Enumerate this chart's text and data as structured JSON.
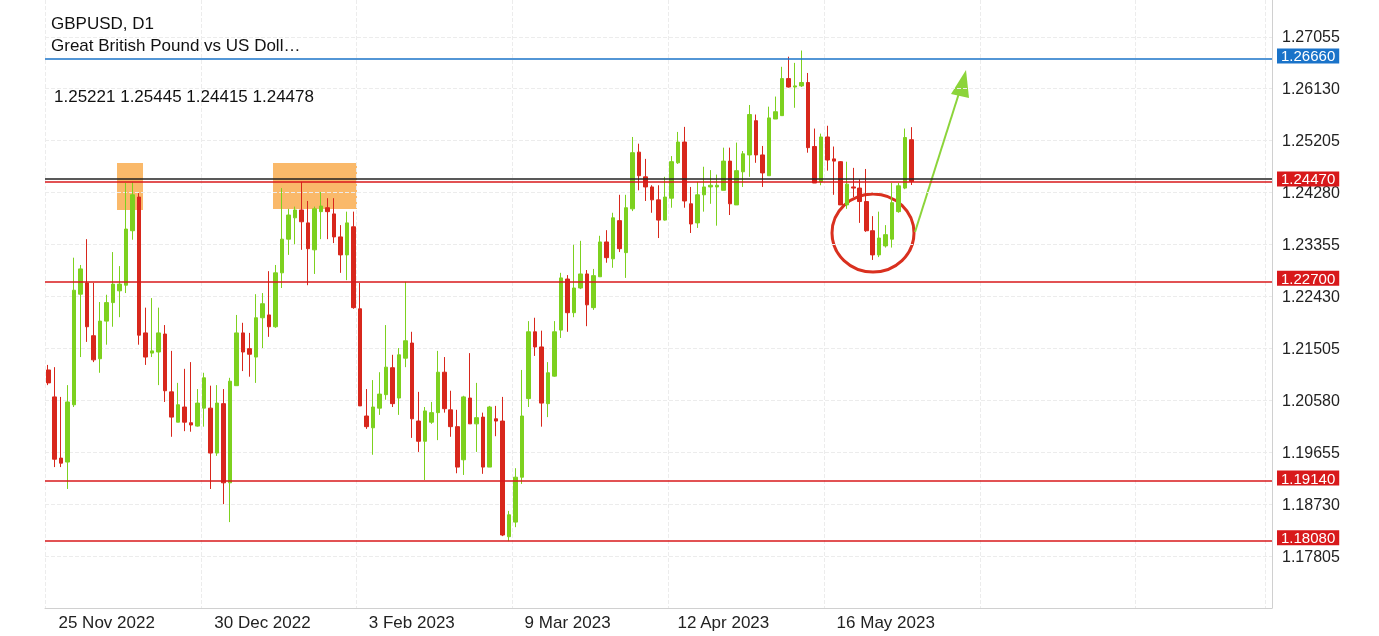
{
  "chart_data": {
    "type": "candlestick",
    "title": "GBPUSD, D1",
    "subtitle": "Great British Pound vs US Doll…",
    "annotations": [
      "1.25221 1.25445 1.24415 1.24478"
    ],
    "categories": [
      null,
      null,
      null,
      null,
      null,
      null,
      null,
      null,
      null,
      "25 Nov 2022",
      null,
      null,
      null,
      null,
      null,
      null,
      null,
      null,
      null,
      null,
      null,
      null,
      null,
      null,
      null,
      null,
      null,
      null,
      null,
      null,
      null,
      null,
      null,
      "30 Dec 2022",
      null,
      null,
      null,
      null,
      null,
      null,
      null,
      null,
      null,
      null,
      null,
      null,
      null,
      null,
      null,
      null,
      null,
      null,
      null,
      null,
      null,
      null,
      "3 Feb 2023",
      null,
      null,
      null,
      null,
      null,
      null,
      null,
      null,
      null,
      null,
      null,
      null,
      null,
      null,
      null,
      null,
      null,
      null,
      null,
      null,
      null,
      null,
      null,
      "9 Mar 2023",
      null,
      null,
      null,
      null,
      null,
      null,
      null,
      null,
      null,
      null,
      null,
      null,
      null,
      null,
      null,
      null,
      null,
      null,
      null,
      null,
      null,
      null,
      null,
      "12 Apr 2023",
      null,
      null,
      null,
      null,
      null,
      null,
      null,
      null,
      null,
      null,
      null,
      null,
      null,
      null,
      null,
      null,
      null,
      null,
      null,
      null,
      null,
      null,
      null,
      null,
      "16 May 2023",
      null,
      null,
      null,
      null,
      null,
      null,
      null,
      null,
      null,
      null,
      null,
      null,
      null,
      null,
      null,
      null,
      null,
      null,
      null,
      null,
      null,
      null,
      null,
      null,
      null,
      null,
      null,
      null,
      null,
      null,
      null,
      null,
      null,
      null,
      null,
      null,
      null,
      null,
      null,
      null,
      null,
      null,
      null,
      null,
      null,
      null,
      null,
      null,
      null,
      null,
      null,
      null,
      null,
      null,
      null,
      null,
      null,
      null,
      null
    ],
    "ohlc": [
      [
        1.2112,
        1.2121,
        1.2085,
        1.2089
      ],
      [
        1.2064,
        1.2117,
        1.1939,
        1.1953
      ],
      [
        1.1955,
        1.2064,
        1.1939,
        1.1946
      ],
      [
        1.1948,
        1.2085,
        1.19,
        1.2055
      ],
      [
        1.205,
        1.2312,
        1.2046,
        1.2254
      ],
      [
        1.2247,
        1.2299,
        1.2135,
        1.2292
      ],
      [
        1.2267,
        1.2345,
        1.2162,
        1.2189
      ],
      [
        1.2173,
        1.2267,
        1.2126,
        1.213
      ],
      [
        1.2132,
        1.2233,
        1.2107,
        1.2199
      ],
      [
        1.2199,
        1.2246,
        1.2157,
        1.2232
      ],
      [
        1.2232,
        1.2322,
        1.2189,
        1.2265
      ],
      [
        1.2253,
        1.2297,
        1.2206,
        1.2265
      ],
      [
        1.2263,
        1.2445,
        1.2249,
        1.2363
      ],
      [
        1.236,
        1.2447,
        1.2344,
        1.2424
      ],
      [
        1.242,
        1.2427,
        1.2157,
        1.2174
      ],
      [
        1.2178,
        1.2223,
        1.2121,
        1.2135
      ],
      [
        1.2142,
        1.224,
        1.2135,
        1.2146
      ],
      [
        1.2144,
        1.2223,
        1.2085,
        1.2178
      ],
      [
        1.2176,
        1.2192,
        1.2055,
        1.2075
      ],
      [
        1.2073,
        1.2146,
        1.1993,
        1.2028
      ],
      [
        1.2019,
        1.2089,
        1.2019,
        1.205
      ],
      [
        1.2046,
        1.2114,
        1.2003,
        1.2019
      ],
      [
        1.2018,
        1.2126,
        1.2002,
        1.2014
      ],
      [
        1.2012,
        1.2078,
        1.2011,
        1.2053
      ],
      [
        1.2044,
        1.2107,
        1.2011,
        1.2098
      ],
      [
        1.2044,
        1.2084,
        1.19,
        1.1964
      ],
      [
        1.1964,
        1.2085,
        1.1959,
        1.2053
      ],
      [
        1.2052,
        1.2078,
        1.1873,
        1.1911
      ],
      [
        1.1911,
        1.2098,
        1.1841,
        1.2092
      ],
      [
        1.2084,
        1.221,
        1.2084,
        1.2178
      ],
      [
        1.2178,
        1.2196,
        1.211,
        1.2144
      ],
      [
        1.215,
        1.2178,
        1.21,
        1.214
      ],
      [
        1.2135,
        1.2247,
        1.2089,
        1.2205
      ],
      [
        1.2205,
        1.2249,
        1.2151,
        1.223
      ],
      [
        1.221,
        1.2288,
        1.2171,
        1.2189
      ],
      [
        1.2189,
        1.2299,
        1.2187,
        1.2285
      ],
      [
        1.2285,
        1.2436,
        1.2258,
        1.2345
      ],
      [
        1.2345,
        1.2399,
        1.2317,
        1.2388
      ],
      [
        1.2383,
        1.2403,
        1.2336,
        1.2397
      ],
      [
        1.2397,
        1.2447,
        1.2326,
        1.2376
      ],
      [
        1.2374,
        1.2413,
        1.2263,
        1.2328
      ],
      [
        1.2326,
        1.2403,
        1.2283,
        1.2399
      ],
      [
        1.2394,
        1.2429,
        1.2345,
        1.2404
      ],
      [
        1.2401,
        1.2418,
        1.2345,
        1.2394
      ],
      [
        1.239,
        1.2418,
        1.2338,
        1.2349
      ],
      [
        1.2349,
        1.237,
        1.2285,
        1.2317
      ],
      [
        1.2317,
        1.2394,
        1.2272,
        1.2374
      ],
      [
        1.2367,
        1.2394,
        1.2221,
        1.2223
      ],
      [
        1.2221,
        1.2267,
        1.2048,
        1.2048
      ],
      [
        1.203,
        1.2078,
        1.2007,
        1.2011
      ],
      [
        1.2009,
        1.2094,
        1.1961,
        1.2046
      ],
      [
        1.2044,
        1.2108,
        1.2032,
        1.2069
      ],
      [
        1.2068,
        1.2192,
        1.2059,
        1.2117
      ],
      [
        1.2116,
        1.2139,
        1.2046,
        1.2052
      ],
      [
        1.2062,
        1.2151,
        1.2032,
        1.2139
      ],
      [
        1.2133,
        1.2269,
        1.2117,
        1.2164
      ],
      [
        1.216,
        1.218,
        1.1991,
        1.2025
      ],
      [
        1.2021,
        1.2073,
        1.1966,
        1.1985
      ],
      [
        1.1985,
        1.2046,
        1.1916,
        1.2039
      ],
      [
        1.2019,
        1.2055,
        1.2016,
        1.2036
      ],
      [
        1.2036,
        1.2146,
        1.1987,
        1.2108
      ],
      [
        1.2108,
        1.2135,
        1.2036,
        1.2043
      ],
      [
        1.2041,
        1.2075,
        1.1993,
        1.2011
      ],
      [
        1.2011,
        1.2041,
        1.1928,
        1.1939
      ],
      [
        1.1952,
        1.2066,
        1.1925,
        1.2064
      ],
      [
        1.2062,
        1.2142,
        1.2016,
        1.2016
      ],
      [
        1.2016,
        1.2089,
        1.1966,
        1.2027
      ],
      [
        1.2028,
        1.2036,
        1.1927,
        1.1939
      ],
      [
        1.1939,
        1.2048,
        1.1939,
        1.2046
      ],
      [
        1.2025,
        1.2048,
        1.1994,
        1.2021
      ],
      [
        1.2021,
        1.2064,
        1.1816,
        1.1818
      ],
      [
        1.1815,
        1.1861,
        1.1807,
        1.1854
      ],
      [
        1.1841,
        1.1937,
        1.1832,
        1.1921
      ],
      [
        1.1921,
        1.2112,
        1.1909,
        1.203
      ],
      [
        1.2061,
        1.2199,
        1.2046,
        1.218
      ],
      [
        1.218,
        1.2205,
        1.2137,
        1.2153
      ],
      [
        1.2153,
        1.2182,
        1.2011,
        1.2053
      ],
      [
        1.2052,
        1.2126,
        1.2028,
        1.2107
      ],
      [
        1.2101,
        1.2199,
        1.21,
        1.218
      ],
      [
        1.2183,
        1.2285,
        1.2169,
        1.2276
      ],
      [
        1.2274,
        1.2281,
        1.218,
        1.2214
      ],
      [
        1.2214,
        1.2335,
        1.2206,
        1.2258
      ],
      [
        1.2258,
        1.2342,
        1.2256,
        1.2283
      ],
      [
        1.2283,
        1.229,
        1.219,
        1.2228
      ],
      [
        1.2223,
        1.2292,
        1.2219,
        1.228
      ],
      [
        1.2278,
        1.2351,
        1.2278,
        1.234
      ],
      [
        1.234,
        1.2361,
        1.2303,
        1.2312
      ],
      [
        1.231,
        1.2392,
        1.2294,
        1.2383
      ],
      [
        1.2378,
        1.2424,
        1.2322,
        1.2328
      ],
      [
        1.2321,
        1.2424,
        1.2276,
        1.2401
      ],
      [
        1.2399,
        1.2527,
        1.2395,
        1.2499
      ],
      [
        1.25,
        1.2515,
        1.2432,
        1.2458
      ],
      [
        1.2456,
        1.2488,
        1.2413,
        1.2438
      ],
      [
        1.2438,
        1.2441,
        1.2392,
        1.2415
      ],
      [
        1.2415,
        1.2441,
        1.2347,
        1.2379
      ],
      [
        1.2379,
        1.2456,
        1.2378,
        1.242
      ],
      [
        1.2418,
        1.2493,
        1.2401,
        1.2483
      ],
      [
        1.2481,
        1.2536,
        1.2479,
        1.2518
      ],
      [
        1.2518,
        1.2545,
        1.2401,
        1.2413
      ],
      [
        1.2408,
        1.2438,
        1.2356,
        1.2372
      ],
      [
        1.2374,
        1.2447,
        1.2365,
        1.2424
      ],
      [
        1.2424,
        1.2474,
        1.2394,
        1.2438
      ],
      [
        1.2438,
        1.2468,
        1.2408,
        1.2441
      ],
      [
        1.2438,
        1.246,
        1.2369,
        1.2441
      ],
      [
        1.2432,
        1.2508,
        1.2432,
        1.2484
      ],
      [
        1.2484,
        1.2508,
        1.2388,
        1.2408
      ],
      [
        1.2406,
        1.2517,
        1.2406,
        1.2467
      ],
      [
        1.2465,
        1.2502,
        1.2438,
        1.2497
      ],
      [
        1.2495,
        1.2584,
        1.2456,
        1.2567
      ],
      [
        1.2556,
        1.2567,
        1.2481,
        1.2495
      ],
      [
        1.2495,
        1.2511,
        1.2438,
        1.2463
      ],
      [
        1.2458,
        1.2581,
        1.2458,
        1.2561
      ],
      [
        1.2559,
        1.2599,
        1.2559,
        1.2572
      ],
      [
        1.2565,
        1.2652,
        1.2565,
        1.2631
      ],
      [
        1.2631,
        1.267,
        1.2615,
        1.2616
      ],
      [
        1.2616,
        1.2659,
        1.2579,
        1.2618
      ],
      [
        1.2618,
        1.2681,
        1.2616,
        1.2624
      ],
      [
        1.2624,
        1.2641,
        1.2499,
        1.2508
      ],
      [
        1.251,
        1.2542,
        1.2445,
        1.2445
      ],
      [
        1.2447,
        1.2533,
        1.2441,
        1.2527
      ],
      [
        1.2527,
        1.2547,
        1.2467,
        1.2486
      ],
      [
        1.2488,
        1.251,
        1.2424,
        1.2484
      ],
      [
        1.2483,
        1.2484,
        1.2406,
        1.2406
      ],
      [
        1.2406,
        1.2483,
        1.2399,
        1.2443
      ],
      [
        1.2438,
        1.2472,
        1.242,
        1.2436
      ],
      [
        1.2436,
        1.2452,
        1.2374,
        1.2412
      ],
      [
        1.2412,
        1.247,
        1.2358,
        1.236
      ],
      [
        1.236,
        1.2386,
        1.2308,
        1.2317
      ],
      [
        1.2317,
        1.2394,
        1.2313,
        1.2347
      ],
      [
        1.2333,
        1.237,
        1.233,
        1.2353
      ],
      [
        1.2345,
        1.2445,
        1.233,
        1.241
      ],
      [
        1.2394,
        1.2445,
        1.2392,
        1.244
      ],
      [
        1.2436,
        1.2542,
        1.2434,
        1.2526
      ],
      [
        1.25221,
        1.25445,
        1.24415,
        1.24478
      ],
      null,
      null,
      null,
      null,
      null,
      null,
      null,
      null,
      null,
      null,
      null,
      null,
      null,
      null,
      null,
      null,
      null,
      null,
      null,
      null,
      null,
      null,
      null,
      null,
      null,
      null,
      null,
      null,
      null,
      null,
      null,
      null,
      null,
      null,
      null,
      null,
      null,
      null,
      null,
      null,
      null,
      null,
      null,
      null,
      null,
      null,
      null,
      null,
      null,
      null,
      null,
      null,
      null,
      null,
      null
    ],
    "colors": [
      "#d8271c",
      "#d8271c",
      "#d8271c",
      "#7dd11f",
      "#7dd11f",
      "#7dd11f",
      "#d8271c",
      "#d8271c",
      "#7dd11f",
      "#7dd11f",
      "#7dd11f",
      "#7dd11f",
      "#7dd11f",
      "#7dd11f",
      "#d8271c",
      "#d8271c",
      "#7dd11f",
      "#7dd11f",
      "#d8271c",
      "#d8271c",
      "#7dd11f",
      "#d8271c",
      "#d8271c",
      "#7dd11f",
      "#7dd11f",
      "#d8271c",
      "#7dd11f",
      "#d8271c",
      "#7dd11f",
      "#7dd11f",
      "#d8271c",
      "#d8271c",
      "#7dd11f",
      "#7dd11f",
      "#d8271c",
      "#7dd11f",
      "#7dd11f",
      "#7dd11f",
      "#7dd11f",
      "#d8271c",
      "#d8271c",
      "#7dd11f",
      "#7dd11f",
      "#d8271c",
      "#d8271c",
      "#d8271c",
      "#7dd11f",
      "#d8271c",
      "#d8271c",
      "#d8271c",
      "#7dd11f",
      "#7dd11f",
      "#7dd11f",
      "#d8271c",
      "#7dd11f",
      "#7dd11f",
      "#d8271c",
      "#d8271c",
      "#7dd11f",
      "#7dd11f",
      "#7dd11f",
      "#d8271c",
      "#d8271c",
      "#d8271c",
      "#7dd11f",
      "#d8271c",
      "#7dd11f",
      "#d8271c",
      "#7dd11f",
      "#d8271c",
      "#d8271c",
      "#7dd11f",
      "#7dd11f",
      "#7dd11f",
      "#7dd11f",
      "#d8271c",
      "#d8271c",
      "#7dd11f",
      "#7dd11f",
      "#7dd11f",
      "#d8271c",
      "#7dd11f",
      "#7dd11f",
      "#d8271c",
      "#7dd11f",
      "#7dd11f",
      "#d8271c",
      "#7dd11f",
      "#d8271c",
      "#7dd11f",
      "#7dd11f",
      "#d8271c",
      "#d8271c",
      "#d8271c",
      "#d8271c",
      "#7dd11f",
      "#7dd11f",
      "#7dd11f",
      "#d8271c",
      "#d8271c",
      "#7dd11f",
      "#7dd11f",
      "#7dd11f",
      "#7dd11f",
      "#7dd11f",
      "#d8271c",
      "#7dd11f",
      "#7dd11f",
      "#7dd11f",
      "#d8271c",
      "#d8271c",
      "#7dd11f",
      "#7dd11f",
      "#7dd11f",
      "#d8271c",
      "#7dd11f",
      "#7dd11f",
      "#d8271c",
      "#d8271c",
      "#7dd11f",
      "#d8271c",
      "#d8271c",
      "#d8271c",
      "#7dd11f",
      "#d8271c",
      "#d8271c",
      "#d8271c",
      "#d8271c",
      "#7dd11f",
      "#7dd11f",
      "#7dd11f",
      "#7dd11f",
      "#7dd11f",
      "#d8271c",
      null,
      null,
      null,
      null,
      null,
      null,
      null,
      null,
      null,
      null,
      null,
      null,
      null,
      null,
      null,
      null,
      null,
      null,
      null,
      null,
      null,
      null,
      null,
      null,
      null,
      null,
      null,
      null,
      null,
      null,
      null,
      null,
      null,
      null,
      null,
      null,
      null,
      null,
      null,
      null,
      null,
      null,
      null,
      null,
      null,
      null,
      null,
      null,
      null,
      null,
      null,
      null,
      null,
      null,
      null
    ],
    "ylim": [
      1.1688,
      1.2771
    ],
    "yticks": [
      1.27055,
      {
        "value": 1.2613,
        "label": "1.26130"
      },
      1.25205,
      {
        "value": 1.2428,
        "label": "1.24280"
      },
      1.23355,
      {
        "value": 1.2243,
        "label": "1.22430"
      },
      1.21505,
      {
        "value": 1.2058,
        "label": "1.20580"
      },
      1.19655,
      {
        "value": 1.1873,
        "label": "1.18730"
      },
      1.17805
    ],
    "grid": true,
    "ref_lines": [
      {
        "axis": "y",
        "value": 1.2666,
        "label": "1.26660",
        "color": "#1a73c9"
      },
      {
        "axis": "y",
        "value": 1.2452,
        "label": null,
        "color": "#222222"
      },
      {
        "axis": "y",
        "value": 1.2447,
        "label": "1.24470",
        "color": "#d8191b"
      },
      {
        "axis": "y",
        "value": 1.227,
        "label": "1.22700",
        "color": "#d8191b"
      },
      {
        "axis": "y",
        "value": 1.1914,
        "label": "1.19140",
        "color": "#d8191b"
      },
      {
        "axis": "y",
        "value": 1.1808,
        "label": "1.18080",
        "color": "#d8191b"
      }
    ]
  }
}
